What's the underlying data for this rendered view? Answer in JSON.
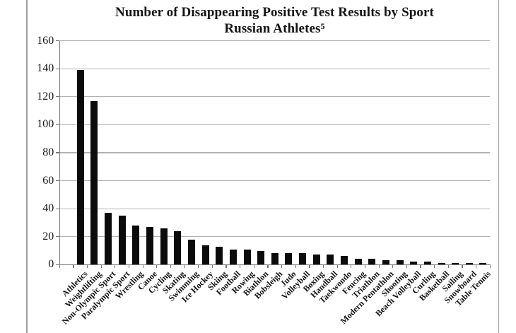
{
  "page": {
    "background": "#ffffff",
    "border_color": "#9d9d9d"
  },
  "title": {
    "line1": "Number of Disappearing Positive Test Results by Sport",
    "line2": "Russian Athletes",
    "footnote_marker": "5"
  },
  "chart_data": {
    "type": "bar",
    "title": "Number of Disappearing Positive Test Results by Sport - Russian Athletes",
    "categories": [
      "Athletics",
      "Weightlifting",
      "Non-Olympic Sport",
      "Paralympic Sport",
      "Wrestling",
      "Canoe",
      "Cycling",
      "Skating",
      "Swimming",
      "Ice Hockey",
      "Skiing",
      "Football",
      "Rowing",
      "Biathlon",
      "Bobsleigh",
      "Judo",
      "Volleyball",
      "Boxing",
      "Handball",
      "Taekwondo",
      "Fencing",
      "Triathlon",
      "Modern Pentathlon",
      "Shooting",
      "Beach Volleyball",
      "Curling",
      "Basketball",
      "Sailing",
      "Snowboard",
      "Table Tennis"
    ],
    "values": [
      139,
      117,
      37,
      35,
      28,
      27,
      26,
      24,
      18,
      14,
      13,
      11,
      11,
      10,
      8,
      8,
      8,
      7,
      7,
      6,
      4,
      4,
      3,
      3,
      2,
      2,
      1,
      1,
      1,
      1
    ],
    "xlabel": "",
    "ylabel": "",
    "ylim": [
      0,
      160
    ],
    "yticks": [
      0,
      20,
      40,
      60,
      80,
      100,
      120,
      140,
      160
    ],
    "grid": "horizontal-only",
    "legend": "none",
    "x_labels_rotation_deg": -45,
    "leading_empty_category_slots": 1,
    "bar_color": "#0b0b0b",
    "gridline_color": "#b2b2b2",
    "axis_color": "#7a7a7a",
    "text_color": "#151515"
  }
}
